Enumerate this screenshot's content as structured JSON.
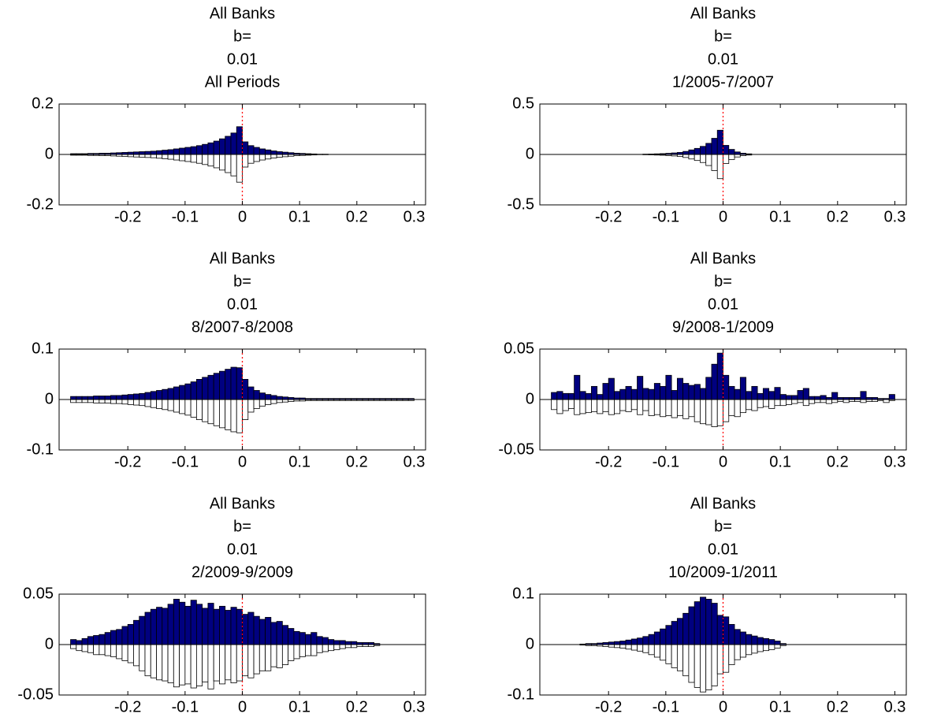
{
  "chart_data": [
    {
      "type": "histogram",
      "title": [
        "All Banks",
        "b=",
        "0.01",
        "All Periods"
      ],
      "bins": [
        -0.3,
        -0.29,
        -0.28,
        -0.27,
        -0.26,
        -0.25,
        -0.24,
        -0.23,
        -0.22,
        -0.21,
        -0.2,
        -0.19,
        -0.18,
        -0.17,
        -0.16,
        -0.15,
        -0.14,
        -0.13,
        -0.12,
        -0.11,
        -0.1,
        -0.09,
        -0.08,
        -0.07,
        -0.06,
        -0.05,
        -0.04,
        -0.03,
        -0.02,
        -0.01,
        0,
        0.01,
        0.02,
        0.03,
        0.04,
        0.05,
        0.06,
        0.07,
        0.08,
        0.09,
        0.1,
        0.11,
        0.12,
        0.13,
        0.14,
        0.15
      ],
      "series": [
        {
          "color": "#000080",
          "values": [
            0.003,
            0.003,
            0.003,
            0.004,
            0.004,
            0.005,
            0.005,
            0.006,
            0.007,
            0.008,
            0.009,
            0.01,
            0.011,
            0.012,
            0.013,
            0.015,
            0.017,
            0.019,
            0.022,
            0.025,
            0.028,
            0.031,
            0.035,
            0.04,
            0.046,
            0.053,
            0.062,
            0.072,
            0.085,
            0.11,
            0.05,
            0.035,
            0.028,
            0.022,
            0.018,
            0.014,
            0.011,
            0.009,
            0.007,
            0.005,
            0.004,
            0.003,
            0.002,
            0.001,
            0.001
          ]
        },
        {
          "color": "#ffffff",
          "values": [
            -0.003,
            -0.003,
            -0.003,
            -0.004,
            -0.004,
            -0.005,
            -0.005,
            -0.006,
            -0.007,
            -0.008,
            -0.009,
            -0.01,
            -0.011,
            -0.012,
            -0.013,
            -0.015,
            -0.017,
            -0.019,
            -0.022,
            -0.025,
            -0.028,
            -0.031,
            -0.035,
            -0.04,
            -0.046,
            -0.053,
            -0.062,
            -0.072,
            -0.085,
            -0.11,
            -0.05,
            -0.035,
            -0.028,
            -0.022,
            -0.018,
            -0.014,
            -0.011,
            -0.009,
            -0.007,
            -0.005,
            -0.004,
            -0.003,
            -0.002,
            -0.001,
            -0.001
          ]
        }
      ],
      "xlim": [
        -0.32,
        0.32
      ],
      "xticks": [
        -0.2,
        -0.1,
        0,
        0.1,
        0.2,
        0.3
      ],
      "ylim": [
        -0.2,
        0.2
      ],
      "yticks": [
        -0.2,
        0,
        0.2
      ],
      "vline": 0,
      "vline_color": "#ff0000"
    },
    {
      "type": "histogram",
      "title": [
        "All Banks",
        "b=",
        "0.01",
        "1/2005-7/2007"
      ],
      "bins": [
        -0.14,
        -0.13,
        -0.12,
        -0.11,
        -0.1,
        -0.09,
        -0.08,
        -0.07,
        -0.06,
        -0.05,
        -0.04,
        -0.03,
        -0.02,
        -0.01,
        0,
        0.01,
        0.02,
        0.03,
        0.04,
        0.05
      ],
      "series": [
        {
          "color": "#000080",
          "values": [
            0.003,
            0.004,
            0.006,
            0.008,
            0.011,
            0.015,
            0.02,
            0.03,
            0.045,
            0.06,
            0.08,
            0.11,
            0.16,
            0.24,
            0.09,
            0.05,
            0.025,
            0.012,
            0.006
          ]
        },
        {
          "color": "#ffffff",
          "values": [
            -0.003,
            -0.004,
            -0.006,
            -0.008,
            -0.011,
            -0.015,
            -0.02,
            -0.03,
            -0.045,
            -0.06,
            -0.08,
            -0.11,
            -0.16,
            -0.24,
            -0.09,
            -0.05,
            -0.025,
            -0.012,
            -0.006
          ]
        }
      ],
      "xlim": [
        -0.32,
        0.32
      ],
      "xticks": [
        -0.2,
        -0.1,
        0,
        0.1,
        0.2,
        0.3
      ],
      "ylim": [
        -0.5,
        0.5
      ],
      "yticks": [
        -0.5,
        0,
        0.5
      ],
      "vline": 0,
      "vline_color": "#ff0000"
    },
    {
      "type": "histogram",
      "title": [
        "All Banks",
        "b=",
        "0.01",
        "8/2007-8/2008"
      ],
      "bins": [
        -0.3,
        -0.29,
        -0.28,
        -0.27,
        -0.26,
        -0.25,
        -0.24,
        -0.23,
        -0.22,
        -0.21,
        -0.2,
        -0.19,
        -0.18,
        -0.17,
        -0.16,
        -0.15,
        -0.14,
        -0.13,
        -0.12,
        -0.11,
        -0.1,
        -0.09,
        -0.08,
        -0.07,
        -0.06,
        -0.05,
        -0.04,
        -0.03,
        -0.02,
        -0.01,
        0,
        0.01,
        0.02,
        0.03,
        0.04,
        0.05,
        0.06,
        0.07,
        0.08,
        0.09,
        0.1,
        0.11,
        0.12,
        0.13,
        0.14,
        0.15,
        0.16,
        0.17,
        0.18,
        0.19,
        0.2,
        0.21,
        0.22,
        0.23,
        0.24,
        0.25,
        0.26,
        0.27,
        0.28,
        0.29,
        0.3
      ],
      "series": [
        {
          "color": "#000080",
          "values": [
            0.006,
            0.006,
            0.006,
            0.006,
            0.007,
            0.007,
            0.007,
            0.008,
            0.008,
            0.009,
            0.01,
            0.011,
            0.012,
            0.014,
            0.016,
            0.018,
            0.02,
            0.022,
            0.025,
            0.028,
            0.031,
            0.035,
            0.04,
            0.044,
            0.048,
            0.052,
            0.056,
            0.06,
            0.064,
            0.063,
            0.04,
            0.025,
            0.018,
            0.013,
            0.01,
            0.008,
            0.006,
            0.005,
            0.004,
            0.003,
            0.003,
            0.002,
            0.002,
            0.002,
            0.002,
            0.002,
            0.002,
            0.002,
            0.002,
            0.002,
            0.002,
            0.002,
            0.002,
            0.002,
            0.002,
            0.002,
            0.002,
            0.002,
            0.002,
            0.002
          ]
        },
        {
          "color": "#ffffff",
          "values": [
            -0.006,
            -0.006,
            -0.006,
            -0.006,
            -0.007,
            -0.007,
            -0.007,
            -0.008,
            -0.008,
            -0.009,
            -0.01,
            -0.011,
            -0.012,
            -0.014,
            -0.016,
            -0.018,
            -0.02,
            -0.022,
            -0.025,
            -0.028,
            -0.031,
            -0.035,
            -0.04,
            -0.044,
            -0.048,
            -0.052,
            -0.056,
            -0.06,
            -0.064,
            -0.066,
            -0.04,
            -0.025,
            -0.018,
            -0.013,
            -0.01,
            -0.008,
            -0.006,
            -0.005,
            -0.004,
            -0.003,
            -0.003,
            -0.002,
            -0.002,
            -0.002,
            -0.002,
            -0.002,
            -0.002,
            -0.002,
            -0.002,
            -0.002,
            -0.002,
            -0.002,
            -0.002,
            -0.002,
            -0.002,
            -0.002,
            -0.002,
            -0.002,
            -0.002,
            -0.002
          ]
        }
      ],
      "xlim": [
        -0.32,
        0.32
      ],
      "xticks": [
        -0.2,
        -0.1,
        0,
        0.1,
        0.2,
        0.3
      ],
      "ylim": [
        -0.1,
        0.1
      ],
      "yticks": [
        -0.1,
        0,
        0.1
      ],
      "vline": 0,
      "vline_color": "#ff0000"
    },
    {
      "type": "histogram",
      "title": [
        "All Banks",
        "b=",
        "0.01",
        "9/2008-1/2009"
      ],
      "bins": [
        -0.3,
        -0.29,
        -0.28,
        -0.27,
        -0.26,
        -0.25,
        -0.24,
        -0.23,
        -0.22,
        -0.21,
        -0.2,
        -0.19,
        -0.18,
        -0.17,
        -0.16,
        -0.15,
        -0.14,
        -0.13,
        -0.12,
        -0.11,
        -0.1,
        -0.09,
        -0.08,
        -0.07,
        -0.06,
        -0.05,
        -0.04,
        -0.03,
        -0.02,
        -0.01,
        0,
        0.01,
        0.02,
        0.03,
        0.04,
        0.05,
        0.06,
        0.07,
        0.08,
        0.09,
        0.1,
        0.11,
        0.12,
        0.13,
        0.14,
        0.15,
        0.16,
        0.17,
        0.18,
        0.19,
        0.2,
        0.21,
        0.22,
        0.23,
        0.24,
        0.25,
        0.26,
        0.27,
        0.28,
        0.29,
        0.3
      ],
      "series": [
        {
          "color": "#000080",
          "values": [
            0.007,
            0.008,
            0.006,
            0.006,
            0.024,
            0.008,
            0.006,
            0.013,
            0.005,
            0.016,
            0.021,
            0.008,
            0.01,
            0.013,
            0.01,
            0.023,
            0.011,
            0.01,
            0.016,
            0.013,
            0.024,
            0.009,
            0.021,
            0.016,
            0.014,
            0.015,
            0.011,
            0.022,
            0.035,
            0.046,
            0.024,
            0.013,
            0.01,
            0.022,
            0.008,
            0.013,
            0.006,
            0.011,
            0.008,
            0.012,
            0.005,
            0.004,
            0.004,
            0.009,
            0.011,
            0.003,
            0.003,
            0.004,
            0.002,
            0.007,
            0.002,
            0.002,
            0.002,
            0.002,
            0.008,
            0.002,
            0.002,
            0.001,
            0.001,
            0.005
          ]
        },
        {
          "color": "#ffffff",
          "values": [
            -0.01,
            -0.014,
            -0.011,
            -0.009,
            -0.015,
            -0.014,
            -0.013,
            -0.012,
            -0.014,
            -0.012,
            -0.015,
            -0.014,
            -0.011,
            -0.012,
            -0.01,
            -0.015,
            -0.011,
            -0.016,
            -0.015,
            -0.017,
            -0.016,
            -0.018,
            -0.016,
            -0.019,
            -0.017,
            -0.022,
            -0.024,
            -0.025,
            -0.027,
            -0.026,
            -0.022,
            -0.016,
            -0.017,
            -0.013,
            -0.01,
            -0.011,
            -0.008,
            -0.007,
            -0.009,
            -0.006,
            -0.006,
            -0.005,
            -0.004,
            -0.003,
            -0.006,
            -0.004,
            -0.003,
            -0.003,
            -0.004,
            -0.003,
            -0.002,
            -0.003,
            -0.002,
            -0.002,
            -0.003,
            -0.002,
            -0.002,
            -0.001,
            -0.003,
            -0.001
          ]
        }
      ],
      "xlim": [
        -0.32,
        0.32
      ],
      "xticks": [
        -0.2,
        -0.1,
        0,
        0.1,
        0.2,
        0.3
      ],
      "ylim": [
        -0.05,
        0.05
      ],
      "yticks": [
        -0.05,
        0,
        0.05
      ],
      "vline": 0,
      "vline_color": "#ff0000"
    },
    {
      "type": "histogram",
      "title": [
        "All Banks",
        "b=",
        "0.01",
        "2/2009-9/2009"
      ],
      "bins": [
        -0.3,
        -0.29,
        -0.28,
        -0.27,
        -0.26,
        -0.25,
        -0.24,
        -0.23,
        -0.22,
        -0.21,
        -0.2,
        -0.19,
        -0.18,
        -0.17,
        -0.16,
        -0.15,
        -0.14,
        -0.13,
        -0.12,
        -0.11,
        -0.1,
        -0.09,
        -0.08,
        -0.07,
        -0.06,
        -0.05,
        -0.04,
        -0.03,
        -0.02,
        -0.01,
        0,
        0.01,
        0.02,
        0.03,
        0.04,
        0.05,
        0.06,
        0.07,
        0.08,
        0.09,
        0.1,
        0.11,
        0.12,
        0.13,
        0.14,
        0.15,
        0.16,
        0.17,
        0.18,
        0.19,
        0.2,
        0.21,
        0.22,
        0.23,
        0.24
      ],
      "series": [
        {
          "color": "#000080",
          "values": [
            0.005,
            0.004,
            0.006,
            0.008,
            0.009,
            0.01,
            0.012,
            0.014,
            0.015,
            0.018,
            0.02,
            0.024,
            0.028,
            0.032,
            0.035,
            0.037,
            0.036,
            0.04,
            0.045,
            0.042,
            0.038,
            0.044,
            0.04,
            0.036,
            0.041,
            0.035,
            0.038,
            0.034,
            0.037,
            0.035,
            0.03,
            0.032,
            0.028,
            0.025,
            0.027,
            0.022,
            0.023,
            0.019,
            0.016,
            0.013,
            0.012,
            0.01,
            0.012,
            0.008,
            0.007,
            0.005,
            0.004,
            0.004,
            0.003,
            0.003,
            0.002,
            0.002,
            0.002,
            0.001
          ]
        },
        {
          "color": "#ffffff",
          "values": [
            -0.004,
            -0.006,
            -0.007,
            -0.008,
            -0.01,
            -0.01,
            -0.011,
            -0.012,
            -0.014,
            -0.016,
            -0.018,
            -0.021,
            -0.026,
            -0.031,
            -0.033,
            -0.035,
            -0.036,
            -0.038,
            -0.042,
            -0.04,
            -0.039,
            -0.043,
            -0.041,
            -0.037,
            -0.044,
            -0.036,
            -0.039,
            -0.035,
            -0.038,
            -0.036,
            -0.031,
            -0.033,
            -0.029,
            -0.026,
            -0.026,
            -0.022,
            -0.023,
            -0.02,
            -0.016,
            -0.014,
            -0.012,
            -0.011,
            -0.011,
            -0.008,
            -0.007,
            -0.006,
            -0.005,
            -0.004,
            -0.003,
            -0.003,
            -0.002,
            -0.002,
            -0.002,
            -0.001
          ]
        }
      ],
      "xlim": [
        -0.32,
        0.32
      ],
      "xticks": [
        -0.2,
        -0.1,
        0,
        0.1,
        0.2,
        0.3
      ],
      "ylim": [
        -0.05,
        0.05
      ],
      "yticks": [
        -0.05,
        0,
        0.05
      ],
      "vline": 0,
      "vline_color": "#ff0000"
    },
    {
      "type": "histogram",
      "title": [
        "All Banks",
        "b=",
        "0.01",
        "10/2009-1/2011"
      ],
      "bins": [
        -0.25,
        -0.24,
        -0.23,
        -0.22,
        -0.21,
        -0.2,
        -0.19,
        -0.18,
        -0.17,
        -0.16,
        -0.15,
        -0.14,
        -0.13,
        -0.12,
        -0.11,
        -0.1,
        -0.09,
        -0.08,
        -0.07,
        -0.06,
        -0.05,
        -0.04,
        -0.03,
        -0.02,
        -0.01,
        0,
        0.01,
        0.02,
        0.03,
        0.04,
        0.05,
        0.06,
        0.07,
        0.08,
        0.09,
        0.1,
        0.11
      ],
      "series": [
        {
          "color": "#000080",
          "values": [
            0.001,
            0.002,
            0.002,
            0.003,
            0.004,
            0.005,
            0.006,
            0.007,
            0.009,
            0.011,
            0.013,
            0.016,
            0.02,
            0.025,
            0.031,
            0.038,
            0.046,
            0.052,
            0.062,
            0.075,
            0.085,
            0.094,
            0.09,
            0.082,
            0.058,
            0.055,
            0.04,
            0.03,
            0.025,
            0.02,
            0.017,
            0.014,
            0.012,
            0.01,
            0.007,
            0.002
          ]
        },
        {
          "color": "#ffffff",
          "values": [
            -0.001,
            -0.002,
            -0.002,
            -0.003,
            -0.004,
            -0.005,
            -0.006,
            -0.007,
            -0.009,
            -0.011,
            -0.013,
            -0.016,
            -0.02,
            -0.025,
            -0.031,
            -0.038,
            -0.046,
            -0.052,
            -0.062,
            -0.075,
            -0.085,
            -0.094,
            -0.09,
            -0.082,
            -0.058,
            -0.055,
            -0.04,
            -0.03,
            -0.025,
            -0.02,
            -0.017,
            -0.014,
            -0.012,
            -0.01,
            -0.007,
            -0.002
          ]
        }
      ],
      "xlim": [
        -0.32,
        0.32
      ],
      "xticks": [
        -0.2,
        -0.1,
        0,
        0.1,
        0.2,
        0.3
      ],
      "ylim": [
        -0.1,
        0.1
      ],
      "yticks": [
        -0.1,
        0,
        0.1
      ],
      "vline": 0,
      "vline_color": "#ff0000"
    }
  ]
}
